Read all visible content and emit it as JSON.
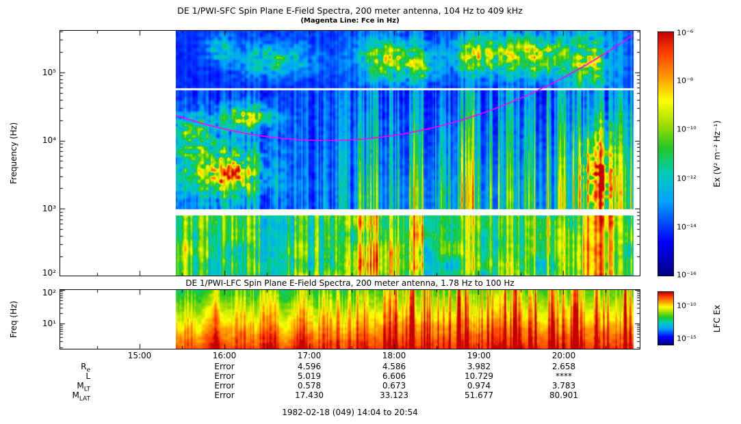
{
  "sfc": {
    "title": "DE 1/PWI-SFC  Spin Plane E-Field Spectra, 200 meter antenna, 104 Hz to 409 kHz",
    "subtitle": "(Magenta Line: Fce in Hz)",
    "ylabel": "Frequency (Hz)",
    "yticks": [
      "10⁵",
      "10⁴",
      "10³",
      "10²"
    ],
    "colorbar": {
      "label": "Ex (V² m⁻² Hz⁻¹)",
      "ticks": [
        "10⁻⁶",
        "10⁻⁸",
        "10⁻¹⁰",
        "10⁻¹²",
        "10⁻¹⁴",
        "10⁻¹⁶"
      ]
    }
  },
  "lfc": {
    "title": "DE 1/PWI-LFC  Spin Plane E-Field Spectra, 200 meter antenna, 1.78 Hz to 100 Hz",
    "ylabel": "Freq (Hz)",
    "yticks": [
      "10²",
      "10¹"
    ],
    "colorbar": {
      "label": "LFC Ex",
      "ticks": [
        "10⁻¹⁰",
        "10⁻¹⁵"
      ]
    }
  },
  "xaxis": {
    "ticks": [
      "15:00",
      "16:00",
      "17:00",
      "18:00",
      "19:00",
      "20:00"
    ]
  },
  "ephemeris": {
    "rows": [
      {
        "label_base": "R",
        "label_sub": "e",
        "values": [
          "Error",
          "4.596",
          "4.586",
          "3.982",
          "2.658"
        ]
      },
      {
        "label_base": "L",
        "label_sub": "",
        "values": [
          "Error",
          "5.019",
          "6.606",
          "10.729",
          "****"
        ]
      },
      {
        "label_base": "M",
        "label_sub": "LT",
        "values": [
          "Error",
          "0.578",
          "0.673",
          "0.974",
          "3.783"
        ]
      },
      {
        "label_base": "M",
        "label_sub": "LAT",
        "values": [
          "Error",
          "17.430",
          "33.123",
          "51.677",
          "80.901"
        ]
      }
    ]
  },
  "footer": "1982-02-18 (049) 14:04 to 20:54",
  "chart_data": {
    "type": "heatmap",
    "title": "DE 1/PWI-SFC Spin Plane E-Field Spectra, 200 meter antenna, 104 Hz to 409 kHz",
    "second_panel_title": "DE 1/PWI-LFC Spin Plane E-Field Spectra, 200 meter antenna, 1.78 Hz to 100 Hz",
    "x_axis": {
      "tick_labels": [
        "15:00",
        "16:00",
        "17:00",
        "18:00",
        "19:00",
        "20:00"
      ],
      "span_label": "1982-02-18 (049) 14:04 to 20:54"
    },
    "time_range": [
      14.067,
      20.9
    ],
    "data_time_range": [
      15.43,
      20.82
    ],
    "sfc": {
      "ylabel": "Frequency (Hz)",
      "freq_range": [
        104,
        409000
      ],
      "gap_hz": [
        800,
        1000
      ],
      "band_break_hz": 57000,
      "color_scale": {
        "label": "Ex (V² m⁻² Hz⁻¹)",
        "min": 1e-16,
        "max": 1e-06
      }
    },
    "lfc": {
      "ylabel": "Freq (Hz)",
      "freq_range": [
        1.78,
        100
      ],
      "color_scale": {
        "label": "LFC Ex",
        "min": 1e-15,
        "max": 1e-10
      }
    },
    "fce_line": {
      "label": "Fce in Hz",
      "color": "#FF00FF",
      "t_min_hours": 17.2,
      "min_log10": 4.0,
      "curvature_log10_per_hr2": 0.118
    },
    "features": [
      "No data (white) before ~15:26 UT in both panels and after ~20:49 UT",
      "Deep blue background 1-57 kHz with cyan/green vertical burst streaks, intensifying after ~17:33",
      "Auroral kilometric radiation blobs (green/yellow) 90-350 kHz from ~16:10 onward, strongest 17:30-20:30",
      "Yellow/orange patch near 20-30 kHz around 16:00-16:30",
      "Cyan-green band 104 Hz-1 kHz with red/orange bursts 17:35-18:20 and 20:15-20:35",
      "Broadband orange burst near 20:25 below 10 kHz",
      "Magenta electron cyclotron frequency line: ~25 kHz at start, minimum ~10 kHz near 17:12, rising to ~350 kHz at end",
      "LFC panel: green at 100 Hz grading through yellow to saturated red below ~10 Hz, red vertical streaks reaching 100 Hz after 17:33"
    ],
    "ephemeris_table": {
      "columns": [
        "16:00",
        "17:00",
        "18:00",
        "19:00",
        "20:00"
      ],
      "rows": [
        {
          "name": "Re",
          "values": [
            "Error",
            "4.596",
            "4.586",
            "3.982",
            "2.658"
          ]
        },
        {
          "name": "L",
          "values": [
            "Error",
            "5.019",
            "6.606",
            "10.729",
            "****"
          ]
        },
        {
          "name": "MLT",
          "values": [
            "Error",
            "0.578",
            "0.673",
            "0.974",
            "3.783"
          ]
        },
        {
          "name": "MLAT",
          "values": [
            "Error",
            "17.430",
            "33.123",
            "51.677",
            "80.901"
          ]
        }
      ]
    }
  }
}
